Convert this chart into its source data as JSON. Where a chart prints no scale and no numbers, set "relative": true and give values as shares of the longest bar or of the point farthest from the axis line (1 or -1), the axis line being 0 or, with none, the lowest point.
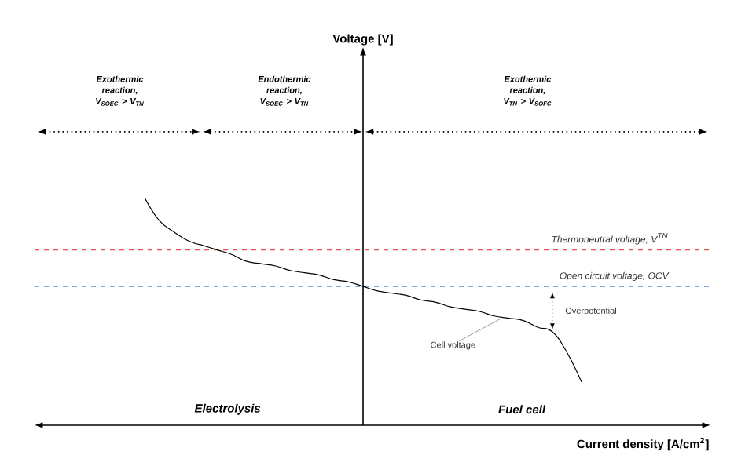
{
  "chart_data": {
    "type": "line",
    "relative": true,
    "xlabel": "Current density [A/cm$^{2}$]",
    "categories": [
      null,
      null,
      null,
      null,
      null,
      null,
      null,
      null,
      null,
      null,
      null,
      null,
      null,
      null,
      null,
      null,
      null,
      null,
      null,
      null,
      null,
      null,
      null,
      null,
      null,
      null,
      null,
      null,
      null,
      null,
      null
    ],
    "series": [
      {
        "color": "#000000",
        "line_style": "solid",
        "values": [
          1.0,
          0.9,
          0.85,
          0.81,
          0.79,
          0.77,
          0.75,
          0.72,
          0.71,
          0.7,
          0.68,
          0.67,
          0.66,
          0.64,
          0.63,
          0.61,
          0.59,
          0.58,
          0.57,
          0.55,
          0.54,
          0.52,
          0.51,
          0.5,
          0.48,
          0.47,
          0.46,
          0.43,
          0.41,
          0.32,
          0.19
        ]
      }
    ],
    "ref_lines": [
      {
        "axis": "y",
        "value": 0.77,
        "label": "Thermoneutral voltage, V$^{TN}$",
        "color": "#e8504a",
        "line_style": "dashed"
      },
      {
        "axis": "y",
        "value": 0.61,
        "label": "Open circuit voltage, OCV",
        "color": "#5b8fc0",
        "line_style": "dashed"
      }
    ],
    "annotations": [
      "Exothermic reaction, V$_{SOEC}$ > V$_{TN}$",
      "Endothermic reaction, V$_{SOEC}$ > V$_{TN}$",
      "Exothermic reaction, V$_{TN}$ > V$_{SOFC}$",
      "Electrolysis",
      "Fuel cell",
      "Overpotential",
      "Cell voltage",
      "Voltage [V]"
    ]
  }
}
